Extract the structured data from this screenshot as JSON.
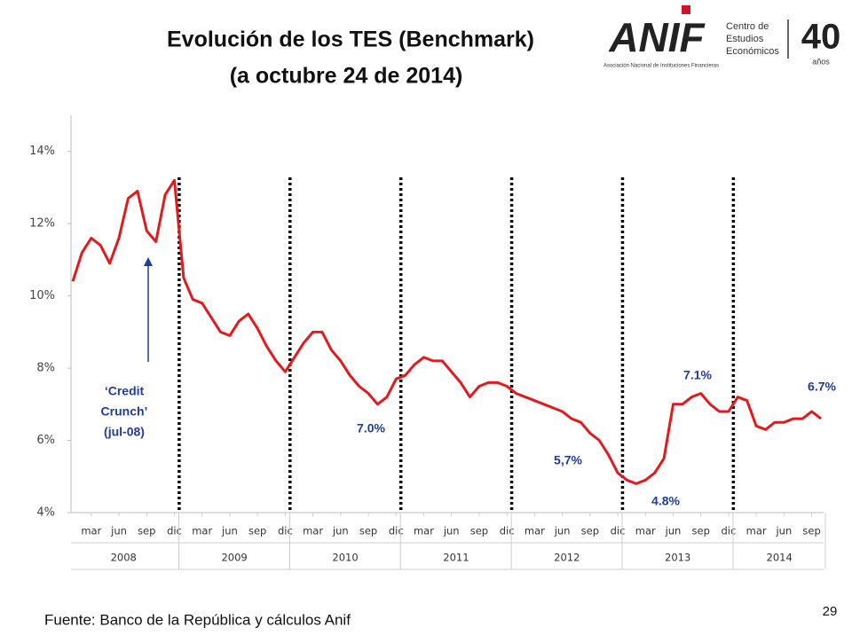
{
  "chart_data": {
    "type": "line",
    "title_lines": [
      "Evolución de los TES (Benchmark)",
      "(a octubre 24 de 2014)"
    ],
    "logo": {
      "brand": "ANIF",
      "subtitle": "Asociación Nacional de Instituciones Financieras",
      "center": [
        "Centro de",
        "Estudios",
        "Económicos"
      ],
      "anniversary": "40",
      "anniversary_unit": "años"
    },
    "source": "Fuente: Banco de la República y cálculos Anif",
    "page_number": "29",
    "categories": [
      "2008-01",
      "2008-02",
      "2008-03",
      "2008-04",
      "2008-05",
      "2008-06",
      "2008-07",
      "2008-08",
      "2008-09",
      "2008-10",
      "2008-11",
      "2008-12",
      "2009-01",
      "2009-02",
      "2009-03",
      "2009-04",
      "2009-05",
      "2009-06",
      "2009-07",
      "2009-08",
      "2009-09",
      "2009-10",
      "2009-11",
      "2009-12",
      "2010-01",
      "2010-02",
      "2010-03",
      "2010-04",
      "2010-05",
      "2010-06",
      "2010-07",
      "2010-08",
      "2010-09",
      "2010-10",
      "2010-11",
      "2010-12",
      "2011-01",
      "2011-02",
      "2011-03",
      "2011-04",
      "2011-05",
      "2011-06",
      "2011-07",
      "2011-08",
      "2011-09",
      "2011-10",
      "2011-11",
      "2011-12",
      "2012-01",
      "2012-02",
      "2012-03",
      "2012-04",
      "2012-05",
      "2012-06",
      "2012-07",
      "2012-08",
      "2012-09",
      "2012-10",
      "2012-11",
      "2012-12",
      "2013-01",
      "2013-02",
      "2013-03",
      "2013-04",
      "2013-05",
      "2013-06",
      "2013-07",
      "2013-08",
      "2013-09",
      "2013-10",
      "2013-11",
      "2013-12",
      "2014-01",
      "2014-02",
      "2014-03",
      "2014-04",
      "2014-05",
      "2014-06",
      "2014-07",
      "2014-08",
      "2014-09",
      "2014-10"
    ],
    "series": [
      {
        "name": "TES",
        "color": "#e31a1c",
        "values": [
          10.4,
          11.2,
          11.6,
          11.4,
          10.9,
          11.6,
          12.7,
          12.9,
          11.8,
          11.5,
          12.8,
          13.2,
          10.5,
          9.9,
          9.8,
          9.4,
          9.0,
          8.9,
          9.3,
          9.5,
          9.1,
          8.6,
          8.2,
          7.9,
          8.3,
          8.7,
          9.0,
          9.0,
          8.5,
          8.2,
          7.8,
          7.5,
          7.3,
          7.0,
          7.2,
          7.7,
          7.8,
          8.1,
          8.3,
          8.2,
          8.2,
          7.9,
          7.6,
          7.2,
          7.5,
          7.6,
          7.6,
          7.5,
          7.3,
          7.2,
          7.1,
          7.0,
          6.9,
          6.8,
          6.6,
          6.5,
          6.2,
          6.0,
          5.6,
          5.1,
          4.9,
          4.8,
          4.9,
          5.1,
          5.5,
          7.0,
          7.0,
          7.2,
          7.3,
          7.0,
          6.8,
          6.8,
          7.2,
          7.1,
          6.4,
          6.3,
          6.5,
          6.5,
          6.6,
          6.6,
          6.8,
          6.6
        ]
      }
    ],
    "ylim": [
      4,
      15
    ],
    "yticks": [
      {
        "value": 4,
        "label": "4%"
      },
      {
        "value": 6,
        "label": "6%"
      },
      {
        "value": 8,
        "label": "8%"
      },
      {
        "value": 10,
        "label": "10%"
      },
      {
        "value": 12,
        "label": "12%"
      },
      {
        "value": 14,
        "label": "14%"
      }
    ],
    "xticks": [
      {
        "value": "2008-03",
        "label": "mar"
      },
      {
        "value": "2008-06",
        "label": "jun"
      },
      {
        "value": "2008-09",
        "label": "sep"
      },
      {
        "value": "2008-12",
        "label": "dic"
      },
      {
        "value": "2009-03",
        "label": "mar"
      },
      {
        "value": "2009-06",
        "label": "jun"
      },
      {
        "value": "2009-09",
        "label": "sep"
      },
      {
        "value": "2009-12",
        "label": "dic"
      },
      {
        "value": "2010-03",
        "label": "mar"
      },
      {
        "value": "2010-06",
        "label": "jun"
      },
      {
        "value": "2010-09",
        "label": "sep"
      },
      {
        "value": "2010-12",
        "label": "dic"
      },
      {
        "value": "2011-03",
        "label": "mar"
      },
      {
        "value": "2011-06",
        "label": "jun"
      },
      {
        "value": "2011-09",
        "label": "sep"
      },
      {
        "value": "2011-12",
        "label": "dic"
      },
      {
        "value": "2012-03",
        "label": "mar"
      },
      {
        "value": "2012-06",
        "label": "jun"
      },
      {
        "value": "2012-09",
        "label": "sep"
      },
      {
        "value": "2012-12",
        "label": "dic"
      },
      {
        "value": "2013-03",
        "label": "mar"
      },
      {
        "value": "2013-06",
        "label": "jun"
      },
      {
        "value": "2013-09",
        "label": "sep"
      },
      {
        "value": "2013-12",
        "label": "dic"
      },
      {
        "value": "2014-03",
        "label": "mar"
      },
      {
        "value": "2014-06",
        "label": "jun"
      },
      {
        "value": "2014-09",
        "label": "sep"
      }
    ],
    "years": [
      "2008",
      "2009",
      "2010",
      "2011",
      "2012",
      "2013",
      "2014"
    ],
    "annotations": [
      {
        "lines": [
          "‘Credit",
          "Crunch’",
          "(jul-08)"
        ]
      },
      {
        "lines": [
          "7.0%"
        ]
      },
      {
        "lines": [
          "5,7%"
        ]
      },
      {
        "lines": [
          "4.8%"
        ]
      },
      {
        "lines": [
          "7.1%"
        ]
      },
      {
        "lines": [
          "6.7%"
        ]
      }
    ]
  }
}
